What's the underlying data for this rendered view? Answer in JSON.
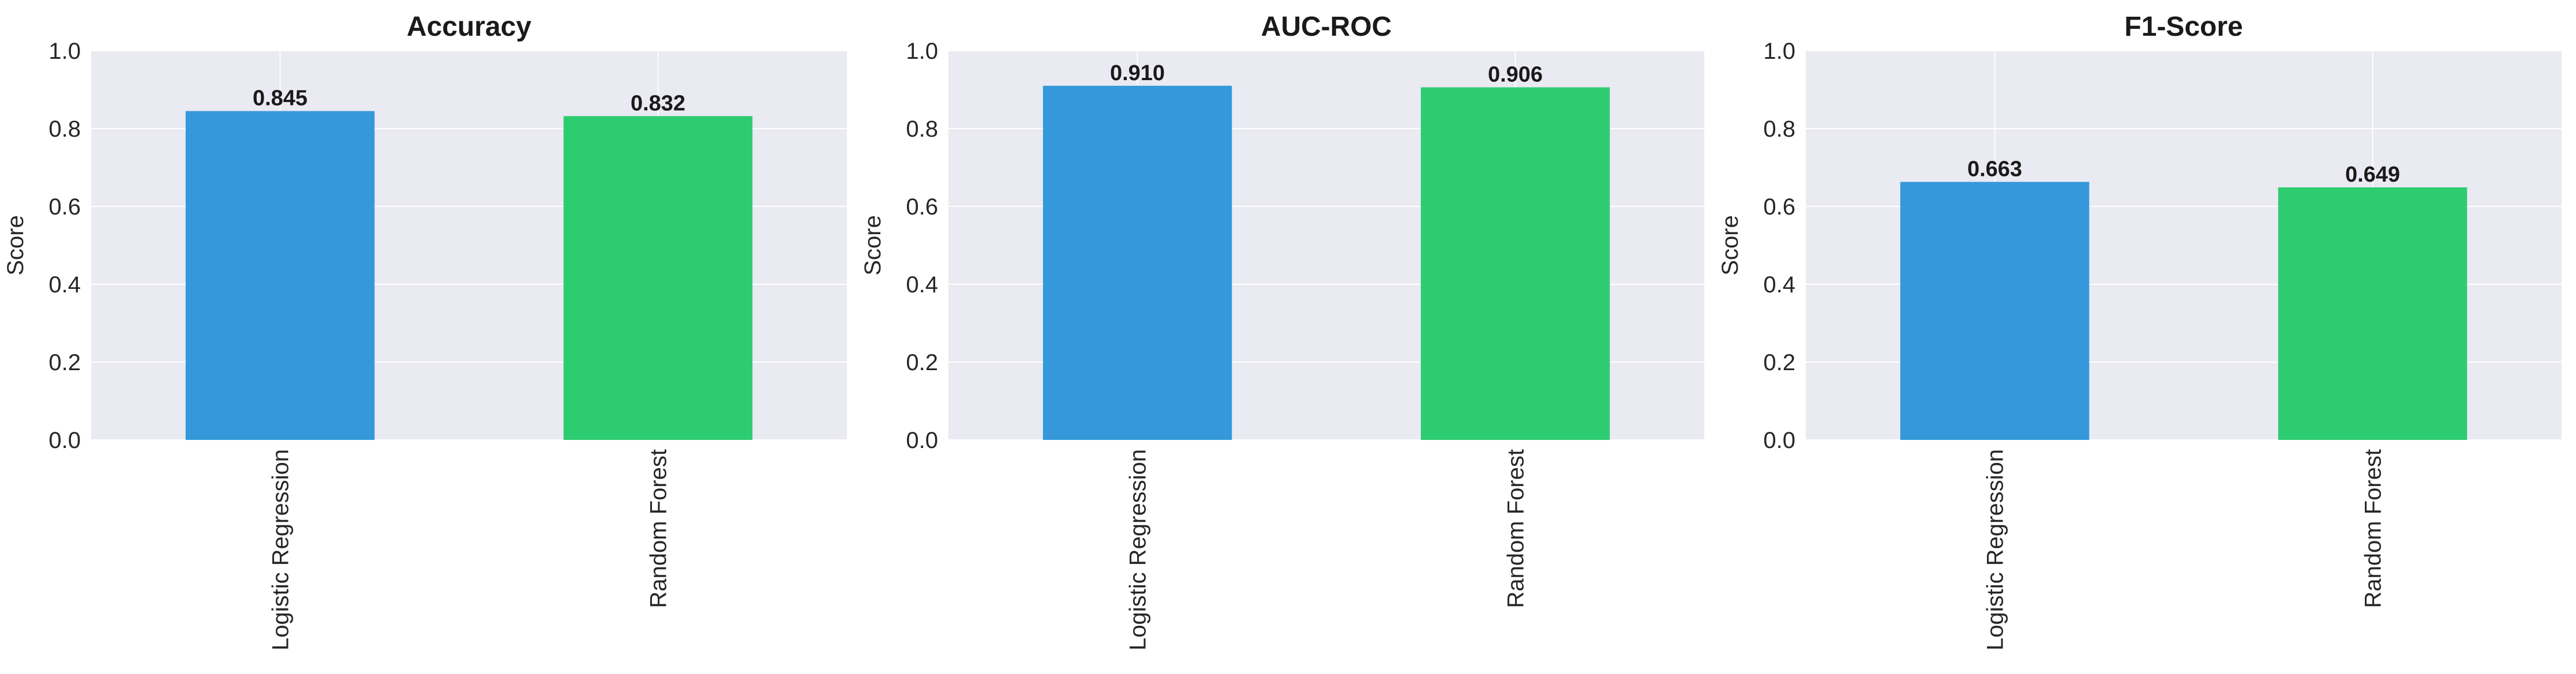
{
  "colors": {
    "plot_background": "#eaeaf2",
    "grid": "#ffffff",
    "text": "#1a1a1a",
    "axis_text": "#262626",
    "series": [
      "#3498db",
      "#2ecc71"
    ]
  },
  "chart_data": [
    {
      "type": "bar",
      "title": "Accuracy",
      "xlabel": "",
      "ylabel": "Score",
      "categories": [
        "Logistic Regression",
        "Random Forest"
      ],
      "values": [
        0.845,
        0.832
      ],
      "value_labels": [
        "0.845",
        "0.832"
      ],
      "ylim": [
        0,
        1
      ],
      "yticks": [
        "0.0",
        "0.2",
        "0.4",
        "0.6",
        "0.8",
        "1.0"
      ],
      "grid": true,
      "legend": "none"
    },
    {
      "type": "bar",
      "title": "AUC-ROC",
      "xlabel": "",
      "ylabel": "Score",
      "categories": [
        "Logistic Regression",
        "Random Forest"
      ],
      "values": [
        0.91,
        0.906
      ],
      "value_labels": [
        "0.910",
        "0.906"
      ],
      "ylim": [
        0,
        1
      ],
      "yticks": [
        "0.0",
        "0.2",
        "0.4",
        "0.6",
        "0.8",
        "1.0"
      ],
      "grid": true,
      "legend": "none"
    },
    {
      "type": "bar",
      "title": "F1-Score",
      "xlabel": "",
      "ylabel": "Score",
      "categories": [
        "Logistic Regression",
        "Random Forest"
      ],
      "values": [
        0.663,
        0.649
      ],
      "value_labels": [
        "0.663",
        "0.649"
      ],
      "ylim": [
        0,
        1
      ],
      "yticks": [
        "0.0",
        "0.2",
        "0.4",
        "0.6",
        "0.8",
        "1.0"
      ],
      "grid": true,
      "legend": "none"
    }
  ]
}
